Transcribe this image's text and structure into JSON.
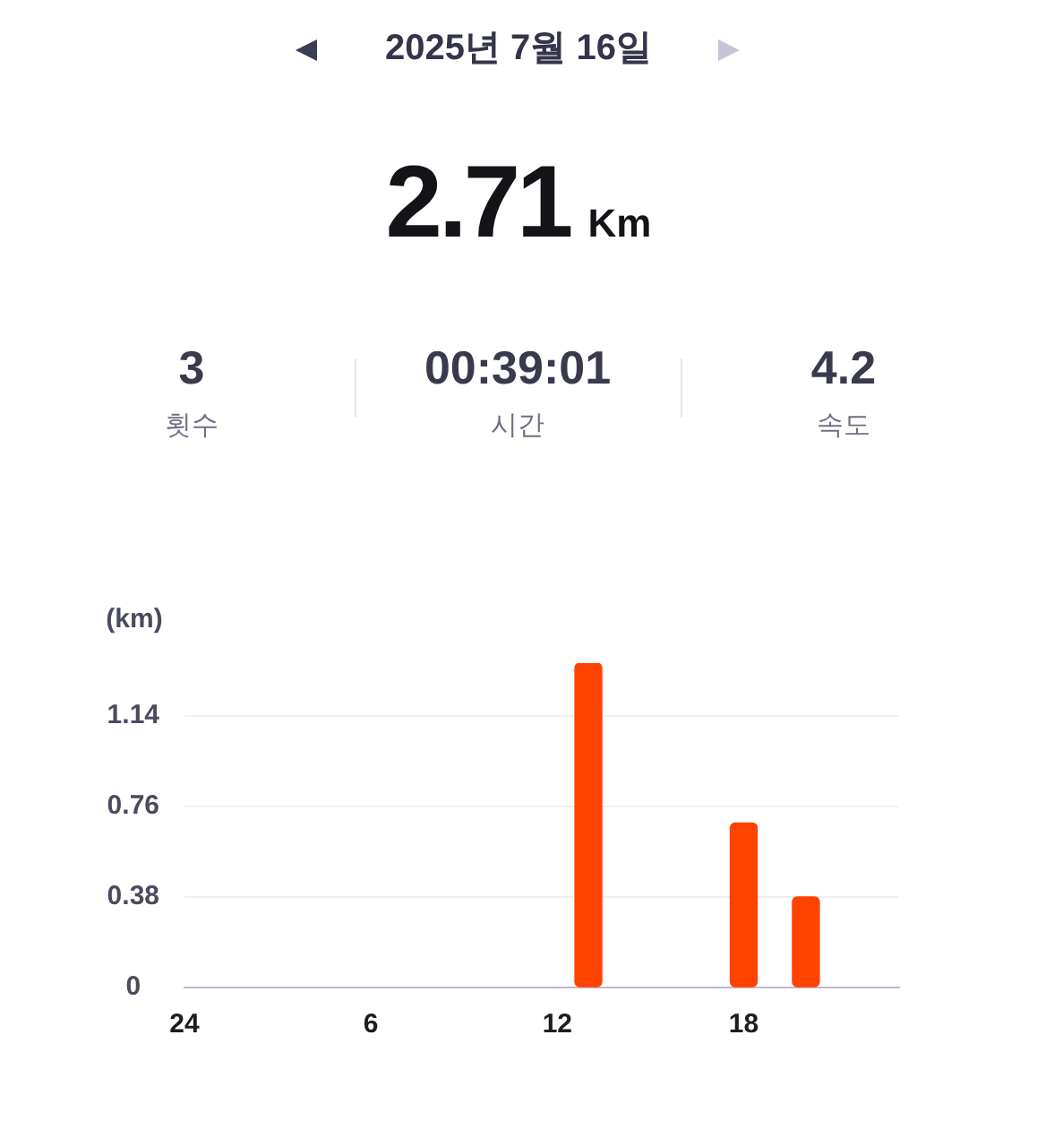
{
  "chart_data": {
    "type": "bar",
    "title": "2025년 7월 16일",
    "annotations": [
      "2.71",
      "Km",
      "3",
      "횟수",
      "00:39:01",
      "시간",
      "4.2",
      "속도"
    ],
    "ylabel": "(km)",
    "categories": [
      "24",
      null,
      null,
      null,
      null,
      null,
      "6",
      null,
      null,
      null,
      null,
      null,
      "12",
      null,
      null,
      null,
      null,
      null,
      "18",
      null,
      null,
      null,
      null,
      null
    ],
    "values": [
      null,
      null,
      null,
      null,
      null,
      null,
      null,
      null,
      null,
      null,
      null,
      null,
      null,
      1.36,
      null,
      null,
      null,
      null,
      0.69,
      null,
      0.38,
      null,
      null,
      null
    ],
    "color": "#fe4200",
    "ylim": [
      0,
      1.36
    ],
    "yticks": [
      0,
      0.38,
      0.76,
      1.14
    ],
    "grid": "y"
  }
}
